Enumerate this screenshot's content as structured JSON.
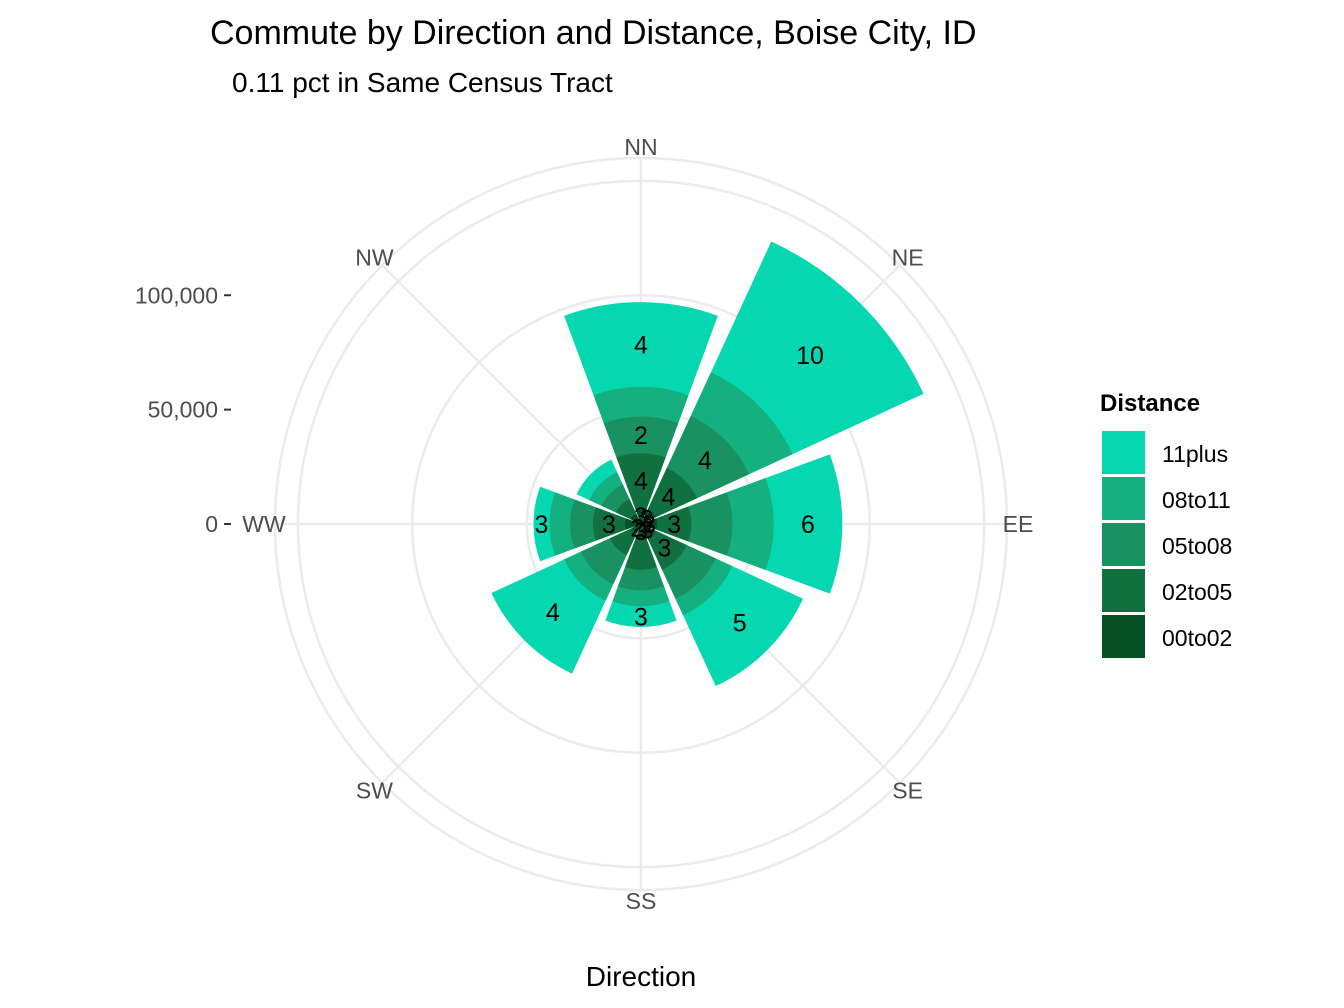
{
  "chart_data": {
    "type": "bar",
    "coord": "polar",
    "title": "Commute by Direction and Distance, Boise City, ID",
    "subtitle": "0.11 pct in Same Census Tract",
    "xlabel": "Direction",
    "ylabel": "",
    "categories": [
      "NN",
      "NE",
      "EE",
      "SE",
      "SS",
      "SW",
      "WW",
      "NW"
    ],
    "y_ticks": [
      0,
      50000,
      100000
    ],
    "y_tick_labels": [
      "0",
      "50,000",
      "100,000"
    ],
    "ylim": [
      0,
      160000
    ],
    "legend": {
      "title": "Distance",
      "position": "right",
      "entries": [
        "11plus",
        "08to11",
        "05to08",
        "02to05",
        "00to02"
      ]
    },
    "colors": {
      "00to02": "#065224",
      "02to05": "#107040",
      "05to08": "#1a9160",
      "08to11": "#15b080",
      "11plus": "#05d8b0",
      "grid": "#ebebeb"
    },
    "series": [
      {
        "name": "00to02",
        "values": [
          7000,
          7000,
          7000,
          7000,
          6000,
          4500,
          7000,
          5000
        ]
      },
      {
        "name": "02to05",
        "values": [
          31000,
          27000,
          22000,
          22000,
          20000,
          15000,
          21000,
          12000
        ]
      },
      {
        "name": "05to08",
        "values": [
          47000,
          52000,
          40000,
          36000,
          29000,
          29000,
          31000,
          19000
        ]
      },
      {
        "name": "08to11",
        "values": [
          60000,
          73000,
          58000,
          44000,
          36000,
          37000,
          40000,
          25000
        ]
      },
      {
        "name": "11plus",
        "values": [
          97000,
          136000,
          88000,
          78000,
          45000,
          72000,
          47000,
          31000
        ]
      }
    ],
    "bar_labels": [
      {
        "category": "NN",
        "series": "00to02",
        "text": "3"
      },
      {
        "category": "NN",
        "series": "02to05",
        "text": "4"
      },
      {
        "category": "NN",
        "series": "05to08",
        "text": "2"
      },
      {
        "category": "NN",
        "series": "11plus",
        "text": "4"
      },
      {
        "category": "NE",
        "series": "00to02",
        "text": "3"
      },
      {
        "category": "NE",
        "series": "02to05",
        "text": "4"
      },
      {
        "category": "NE",
        "series": "05to08",
        "text": "4"
      },
      {
        "category": "NE",
        "series": "11plus",
        "text": "10"
      },
      {
        "category": "EE",
        "series": "00to02",
        "text": "3"
      },
      {
        "category": "EE",
        "series": "02to05",
        "text": "3"
      },
      {
        "category": "EE",
        "series": "11plus",
        "text": "6"
      },
      {
        "category": "SE",
        "series": "00to02",
        "text": "3"
      },
      {
        "category": "SE",
        "series": "02to05",
        "text": "3"
      },
      {
        "category": "SE",
        "series": "11plus",
        "text": "5"
      },
      {
        "category": "SS",
        "series": "00to02",
        "text": "3"
      },
      {
        "category": "SS",
        "series": "11plus",
        "text": "3"
      },
      {
        "category": "SW",
        "series": "00to02",
        "text": "2"
      },
      {
        "category": "SW",
        "series": "11plus",
        "text": "4"
      },
      {
        "category": "WW",
        "series": "02to05",
        "text": "3"
      },
      {
        "category": "WW",
        "series": "11plus",
        "text": "3"
      }
    ]
  }
}
